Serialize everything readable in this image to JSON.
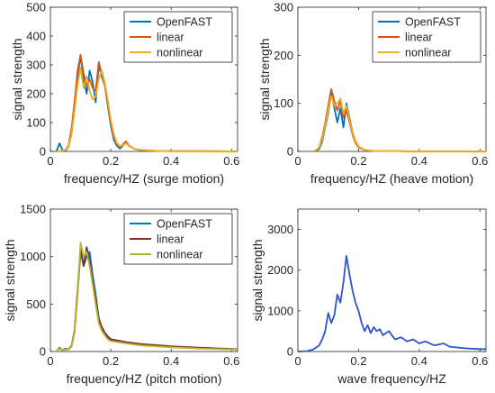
{
  "chart_data": [
    {
      "type": "line",
      "xlabel": "frequency/HZ (surge motion)",
      "ylabel": "signal strength",
      "xlim": [
        0,
        0.62
      ],
      "ylim": [
        0,
        500
      ],
      "xticks": [
        "0",
        "0.2",
        "0.4",
        "0.6"
      ],
      "yticks": [
        "0",
        "100",
        "200",
        "300",
        "400",
        "500"
      ],
      "legend": "top-right",
      "series": [
        {
          "name": "OpenFAST",
          "color": "#0072BD",
          "x": [
            0.02,
            0.03,
            0.04,
            0.05,
            0.06,
            0.07,
            0.08,
            0.09,
            0.1,
            0.11,
            0.12,
            0.13,
            0.14,
            0.15,
            0.16,
            0.17,
            0.18,
            0.19,
            0.2,
            0.21,
            0.22,
            0.23,
            0.24,
            0.25,
            0.26,
            0.28,
            0.3,
            0.35,
            0.4,
            0.5,
            0.62
          ],
          "y": [
            0,
            28,
            5,
            2,
            15,
            60,
            150,
            260,
            330,
            250,
            200,
            280,
            240,
            170,
            300,
            260,
            230,
            160,
            90,
            40,
            20,
            10,
            20,
            30,
            20,
            8,
            4,
            2,
            1,
            1,
            0
          ]
        },
        {
          "name": "linear",
          "color": "#D95319",
          "x": [
            0.02,
            0.04,
            0.05,
            0.06,
            0.07,
            0.08,
            0.09,
            0.1,
            0.11,
            0.12,
            0.13,
            0.14,
            0.15,
            0.16,
            0.17,
            0.18,
            0.19,
            0.2,
            0.21,
            0.22,
            0.23,
            0.24,
            0.25,
            0.26,
            0.28,
            0.3,
            0.35,
            0.4,
            0.5,
            0.62
          ],
          "y": [
            0,
            3,
            5,
            20,
            80,
            170,
            280,
            335,
            270,
            230,
            250,
            220,
            210,
            310,
            270,
            230,
            170,
            100,
            50,
            25,
            15,
            25,
            35,
            20,
            8,
            5,
            2,
            1,
            1,
            0
          ]
        },
        {
          "name": "nonlinear",
          "color": "#EDB120",
          "x": [
            0.02,
            0.04,
            0.05,
            0.06,
            0.07,
            0.08,
            0.09,
            0.1,
            0.11,
            0.12,
            0.13,
            0.14,
            0.15,
            0.16,
            0.17,
            0.18,
            0.19,
            0.2,
            0.21,
            0.22,
            0.23,
            0.24,
            0.25,
            0.26,
            0.28,
            0.3,
            0.35,
            0.4,
            0.5,
            0.62
          ],
          "y": [
            0,
            3,
            5,
            15,
            60,
            140,
            230,
            290,
            220,
            260,
            210,
            180,
            190,
            250,
            280,
            240,
            180,
            110,
            60,
            30,
            18,
            22,
            28,
            18,
            8,
            5,
            2,
            1,
            1,
            0
          ]
        }
      ]
    },
    {
      "type": "line",
      "xlabel": "frequency/HZ (heave motion)",
      "ylabel": "signal strength",
      "xlim": [
        0,
        0.62
      ],
      "ylim": [
        0,
        300
      ],
      "xticks": [
        "0",
        "0.2",
        "0.4",
        "0.6"
      ],
      "yticks": [
        "0",
        "100",
        "200",
        "300"
      ],
      "legend": "top-right",
      "series": [
        {
          "name": "OpenFAST",
          "color": "#0072BD",
          "x": [
            0.05,
            0.06,
            0.07,
            0.08,
            0.09,
            0.1,
            0.11,
            0.12,
            0.13,
            0.14,
            0.15,
            0.16,
            0.17,
            0.18,
            0.19,
            0.2,
            0.22,
            0.25,
            0.3,
            0.4,
            0.62
          ],
          "y": [
            0,
            2,
            5,
            20,
            50,
            80,
            120,
            90,
            60,
            90,
            50,
            100,
            70,
            40,
            20,
            10,
            3,
            1,
            1,
            0,
            0
          ]
        },
        {
          "name": "linear",
          "color": "#D95319",
          "x": [
            0.05,
            0.06,
            0.07,
            0.08,
            0.09,
            0.1,
            0.11,
            0.12,
            0.13,
            0.14,
            0.15,
            0.16,
            0.17,
            0.18,
            0.19,
            0.2,
            0.22,
            0.25,
            0.3,
            0.4,
            0.62
          ],
          "y": [
            0,
            3,
            8,
            30,
            60,
            95,
            130,
            105,
            85,
            105,
            70,
            85,
            60,
            35,
            18,
            8,
            3,
            1,
            1,
            0,
            0
          ]
        },
        {
          "name": "nonlinear",
          "color": "#EDB120",
          "x": [
            0.05,
            0.06,
            0.07,
            0.08,
            0.09,
            0.1,
            0.11,
            0.12,
            0.13,
            0.14,
            0.15,
            0.16,
            0.17,
            0.18,
            0.19,
            0.2,
            0.22,
            0.25,
            0.3,
            0.4,
            0.62
          ],
          "y": [
            0,
            3,
            8,
            25,
            55,
            85,
            115,
            95,
            100,
            110,
            80,
            95,
            65,
            40,
            22,
            10,
            3,
            1,
            1,
            0,
            0
          ]
        }
      ]
    },
    {
      "type": "line",
      "xlabel": "frequency/HZ (pitch motion)",
      "ylabel": "signal strength",
      "xlim": [
        0,
        0.62
      ],
      "ylim": [
        0,
        1500
      ],
      "xticks": [
        "0",
        "0.2",
        "0.4",
        "0.6"
      ],
      "yticks": [
        "0",
        "500",
        "1000",
        "1500"
      ],
      "legend": "top-right",
      "series": [
        {
          "name": "OpenFAST",
          "color": "#0072BD",
          "x": [
            0.02,
            0.03,
            0.04,
            0.05,
            0.06,
            0.07,
            0.08,
            0.09,
            0.1,
            0.11,
            0.12,
            0.13,
            0.14,
            0.15,
            0.16,
            0.17,
            0.18,
            0.19,
            0.2,
            0.25,
            0.3,
            0.4,
            0.5,
            0.62
          ],
          "y": [
            0,
            40,
            10,
            30,
            20,
            60,
            200,
            600,
            1050,
            900,
            1000,
            1050,
            800,
            600,
            350,
            250,
            180,
            140,
            120,
            90,
            70,
            50,
            35,
            20
          ]
        },
        {
          "name": "linear",
          "color": "#7E2F2F",
          "x": [
            0.02,
            0.03,
            0.04,
            0.05,
            0.06,
            0.07,
            0.08,
            0.09,
            0.1,
            0.11,
            0.12,
            0.13,
            0.14,
            0.15,
            0.16,
            0.17,
            0.18,
            0.19,
            0.2,
            0.25,
            0.3,
            0.4,
            0.5,
            0.62
          ],
          "y": [
            0,
            35,
            10,
            25,
            20,
            60,
            220,
            650,
            1100,
            900,
            1100,
            950,
            750,
            550,
            350,
            260,
            200,
            160,
            130,
            100,
            80,
            55,
            40,
            25
          ]
        },
        {
          "name": "nonlinear",
          "color": "#B8B830",
          "x": [
            0.02,
            0.03,
            0.04,
            0.05,
            0.06,
            0.07,
            0.08,
            0.09,
            0.1,
            0.11,
            0.12,
            0.13,
            0.14,
            0.15,
            0.16,
            0.17,
            0.18,
            0.19,
            0.2,
            0.25,
            0.3,
            0.4,
            0.5,
            0.62
          ],
          "y": [
            0,
            30,
            10,
            20,
            20,
            50,
            200,
            600,
            1150,
            1000,
            1050,
            900,
            700,
            500,
            300,
            220,
            170,
            130,
            110,
            85,
            65,
            45,
            30,
            20
          ]
        }
      ]
    },
    {
      "type": "line",
      "xlabel": "wave frequency/HZ",
      "ylabel": "signal strength",
      "xlim": [
        0,
        0.62
      ],
      "ylim": [
        0,
        3500
      ],
      "xticks": [
        "0",
        "0.2",
        "0.4",
        "0.6"
      ],
      "yticks": [
        "0",
        "1000",
        "2000",
        "3000"
      ],
      "series": [
        {
          "name": "",
          "color": "#2B55C8",
          "x": [
            0,
            0.03,
            0.05,
            0.07,
            0.08,
            0.09,
            0.1,
            0.11,
            0.12,
            0.13,
            0.14,
            0.15,
            0.16,
            0.17,
            0.18,
            0.19,
            0.2,
            0.21,
            0.22,
            0.23,
            0.24,
            0.25,
            0.26,
            0.27,
            0.28,
            0.3,
            0.32,
            0.34,
            0.36,
            0.38,
            0.4,
            0.42,
            0.45,
            0.48,
            0.5,
            0.55,
            0.6,
            0.62
          ],
          "y": [
            0,
            10,
            50,
            150,
            300,
            500,
            950,
            700,
            900,
            1400,
            1200,
            1700,
            2350,
            1900,
            1500,
            1200,
            1000,
            700,
            500,
            650,
            450,
            600,
            500,
            550,
            400,
            500,
            300,
            350,
            250,
            300,
            200,
            250,
            150,
            200,
            120,
            80,
            60,
            60
          ]
        }
      ]
    }
  ]
}
